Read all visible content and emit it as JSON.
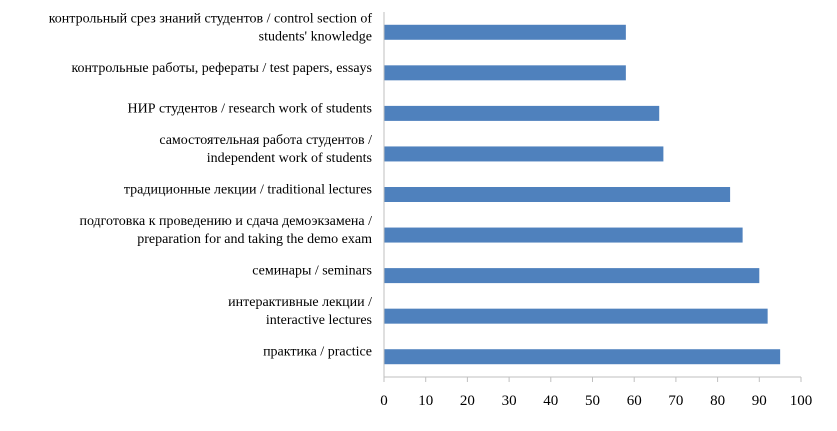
{
  "chart_data": {
    "type": "bar",
    "orientation": "horizontal",
    "bar_color": "#4f81bd",
    "categories": [
      [
        "контрольный срез знаний студентов / control section of",
        "students' knowledge"
      ],
      [
        "контрольные работы, рефераты / test papers, essays"
      ],
      [
        "НИР студентов / research work of students"
      ],
      [
        "самостоятельная работа студентов /",
        "independent work of students"
      ],
      [
        "традиционные лекции / traditional lectures"
      ],
      [
        "подготовка к проведению и сдача демоэкзамена /",
        "preparation for and taking the demo exam"
      ],
      [
        "семинары / seminars"
      ],
      [
        "интерактивные лекции /",
        "interactive lectures"
      ],
      [
        "практика / practice"
      ]
    ],
    "values": [
      58,
      58,
      66,
      67,
      83,
      86,
      90,
      92,
      95
    ],
    "xlim": [
      0,
      100
    ],
    "xticks": [
      "0",
      "10",
      "20",
      "30",
      "40",
      "50",
      "60",
      "70",
      "80",
      "90",
      "100"
    ],
    "grid": false,
    "legend": "none"
  }
}
